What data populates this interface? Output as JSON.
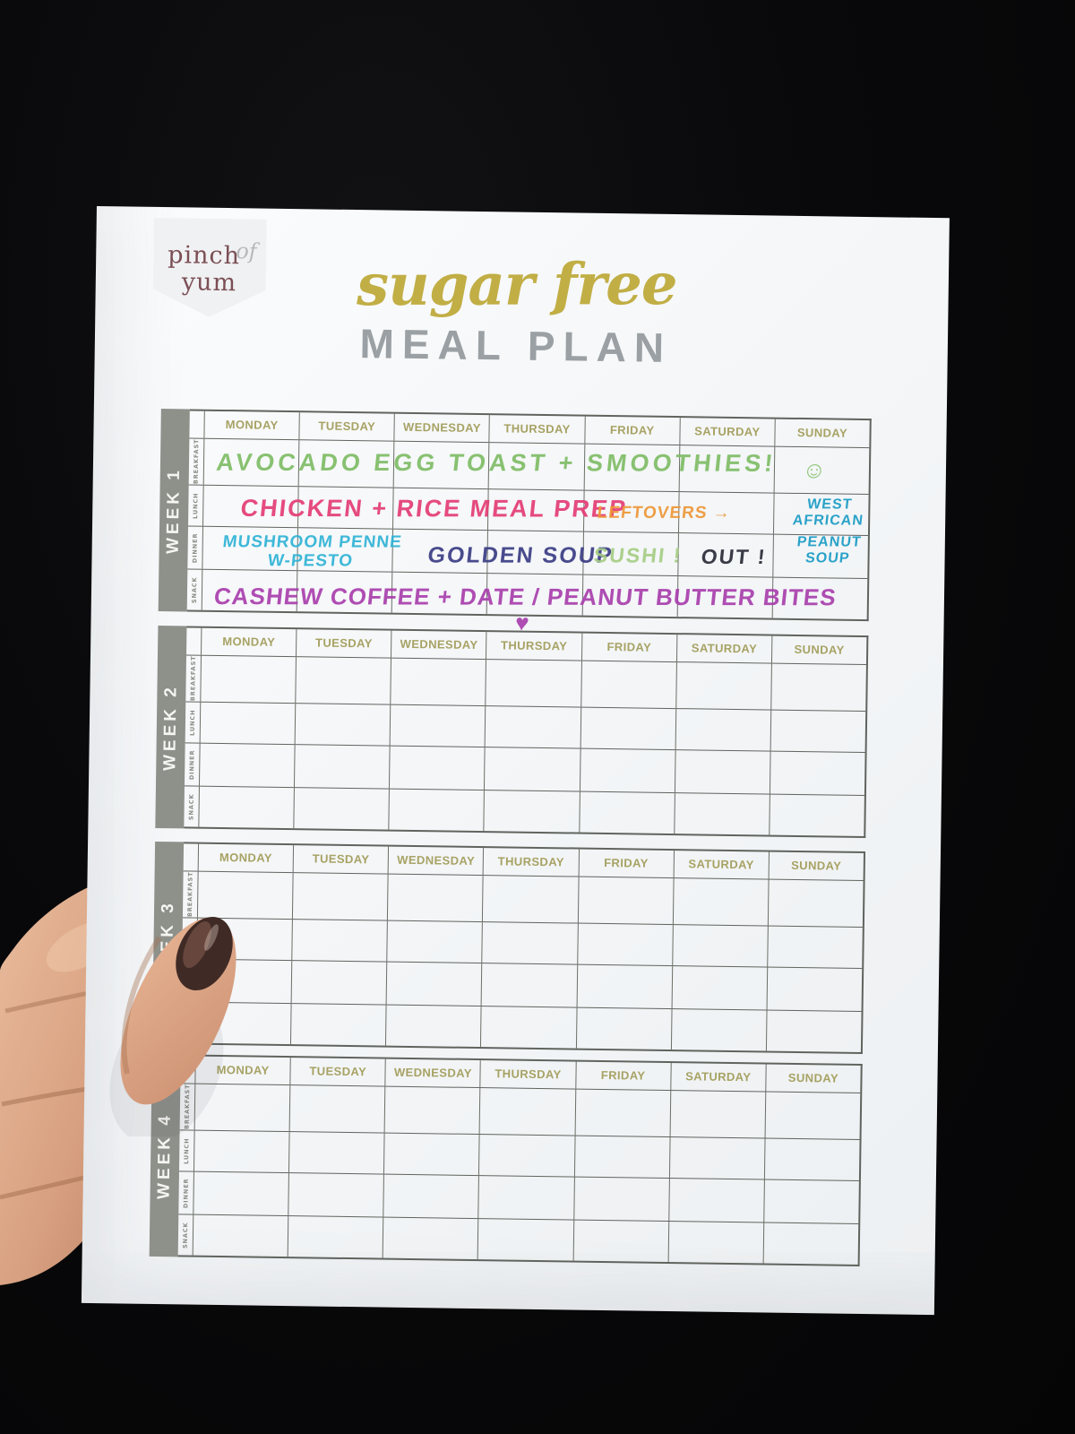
{
  "logo": {
    "word1": "pinch",
    "word2": "of",
    "word3": "yum"
  },
  "title": {
    "script": "sugar free",
    "heading": "MEAL PLAN"
  },
  "calendar": {
    "day_headers": [
      "MONDAY",
      "TUESDAY",
      "WEDNESDAY",
      "THURSDAY",
      "FRIDAY",
      "SATURDAY",
      "SUNDAY"
    ],
    "meal_rows": [
      "BREAKFAST",
      "LUNCH",
      "DINNER",
      "SNACK"
    ],
    "weeks": [
      "WEEK 1",
      "WEEK 2",
      "WEEK 3",
      "WEEK 4"
    ]
  },
  "week1_notes": [
    {
      "id": "breakfast-note",
      "row": "BREAKFAST",
      "days": "MON-SAT",
      "text": "AVOCADO EGG TOAST + SMOOTHIES!",
      "color": "#7fbd66"
    },
    {
      "id": "breakfast-smiley",
      "row": "BREAKFAST",
      "days": "SUN",
      "text": "☺",
      "color": "#8ac474"
    },
    {
      "id": "lunch-note",
      "row": "LUNCH",
      "days": "MON-THU",
      "text": "CHICKEN + RICE MEAL PREP",
      "color": "#e43d74"
    },
    {
      "id": "lunch-leftovers",
      "row": "LUNCH",
      "days": "FRI-SAT",
      "text": "LEFTOVERS →",
      "color": "#ee9737"
    },
    {
      "id": "lunch-sunday",
      "row": "LUNCH",
      "days": "SUN",
      "text": "WEST\nAFRICAN",
      "color": "#1a9cc5"
    },
    {
      "id": "dinner-mon",
      "row": "DINNER",
      "days": "MON-TUE",
      "text": "MUSHROOM PENNE\nW-PESTO",
      "color": "#2fb3d6"
    },
    {
      "id": "dinner-wed",
      "row": "DINNER",
      "days": "WED-THU",
      "text": "GOLDEN SOUP",
      "color": "#3b3d84"
    },
    {
      "id": "dinner-fri",
      "row": "DINNER",
      "days": "FRI",
      "text": "SUSHI !",
      "color": "#a6cd85"
    },
    {
      "id": "dinner-sat",
      "row": "DINNER",
      "days": "SAT",
      "text": "OUT !",
      "color": "#2a2c38"
    },
    {
      "id": "dinner-sun",
      "row": "DINNER",
      "days": "SUN",
      "text": "PEANUT\nSOUP",
      "color": "#1a9cc5"
    },
    {
      "id": "snack-note",
      "row": "SNACK",
      "days": "MON-SUN",
      "text": "CASHEW COFFEE + DATE / PEANUT BUTTER BITES ♥",
      "color": "#a93fad"
    }
  ],
  "colors": {
    "paper": "#f4f6f8",
    "sidebar_gray": "#8e908a",
    "grid_line": "#60645e",
    "day_header_olive": "#a7a264",
    "title_gold": "#c1ae45",
    "title_gray": "#9aa0a3",
    "logo_plum": "#7b4f55",
    "nail_polish": "#3f2a25",
    "background": "#050506"
  }
}
